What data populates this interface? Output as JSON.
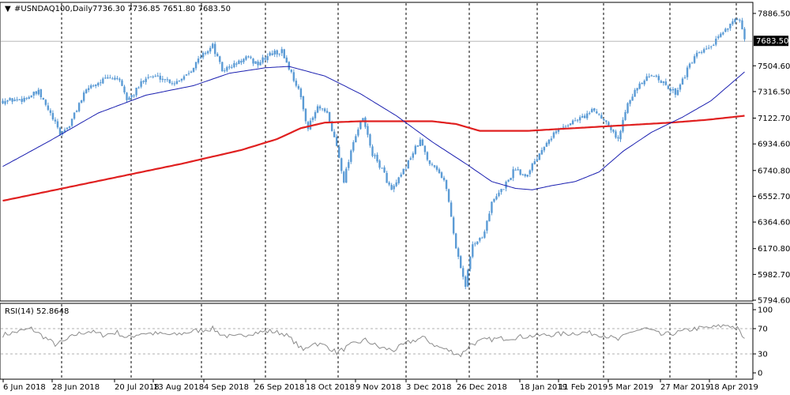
{
  "header": {
    "symbol": "#USNDAQ100,Daily",
    "ohlc": "7736.30 7736.85 7651.80 7683.50"
  },
  "price_tag": "7683.50",
  "colors": {
    "bull": "#5b9bd5",
    "bear": "#5b9bd5",
    "ma_fast": "#1a1fb0",
    "ma_slow": "#e02020",
    "rsi": "#8c8c8c",
    "grid": "#000000",
    "level": "#b0b0b0"
  },
  "chart_data": [
    {
      "type": "candlestick",
      "title": "#USNDAQ100,Daily",
      "x_tick_labels": [
        "6 Jun 2018",
        "28 Jun 2018",
        "20 Jul 2018",
        "13 Aug 2018",
        "4 Sep 2018",
        "26 Sep 2018",
        "18 Oct 2018",
        "9 Nov 2018",
        "3 Dec 2018",
        "26 Dec 2018",
        "18 Jan 2019",
        "11 Feb 2019",
        "5 Mar 2019",
        "27 Mar 2019",
        "18 Apr 2019"
      ],
      "y_ticks": [
        "7886.50",
        "7504.60",
        "7316.50",
        "7122.70",
        "6934.60",
        "6740.80",
        "6552.70",
        "6364.60",
        "6170.80",
        "5982.70",
        "5794.60"
      ],
      "ylim": [
        5794.6,
        7886.5
      ],
      "last_price": 7683.5,
      "keypoints": [
        [
          0,
          7250
        ],
        [
          8,
          7260
        ],
        [
          15,
          7310
        ],
        [
          20,
          7150
        ],
        [
          24,
          7010
        ],
        [
          28,
          7070
        ],
        [
          32,
          7230
        ],
        [
          36,
          7350
        ],
        [
          42,
          7400
        ],
        [
          48,
          7420
        ],
        [
          52,
          7260
        ],
        [
          55,
          7300
        ],
        [
          60,
          7430
        ],
        [
          66,
          7420
        ],
        [
          72,
          7380
        ],
        [
          78,
          7460
        ],
        [
          84,
          7590
        ],
        [
          88,
          7650
        ],
        [
          92,
          7470
        ],
        [
          97,
          7510
        ],
        [
          102,
          7560
        ],
        [
          107,
          7520
        ],
        [
          112,
          7590
        ],
        [
          117,
          7610
        ],
        [
          120,
          7490
        ],
        [
          124,
          7330
        ],
        [
          128,
          7050
        ],
        [
          132,
          7200
        ],
        [
          136,
          7150
        ],
        [
          140,
          6920
        ],
        [
          143,
          6670
        ],
        [
          147,
          6960
        ],
        [
          151,
          7120
        ],
        [
          155,
          6860
        ],
        [
          159,
          6750
        ],
        [
          163,
          6590
        ],
        [
          167,
          6700
        ],
        [
          171,
          6840
        ],
        [
          175,
          6960
        ],
        [
          178,
          6820
        ],
        [
          182,
          6760
        ],
        [
          186,
          6620
        ],
        [
          190,
          6180
        ],
        [
          194,
          5900
        ],
        [
          197,
          6210
        ],
        [
          201,
          6250
        ],
        [
          205,
          6500
        ],
        [
          210,
          6620
        ],
        [
          215,
          6760
        ],
        [
          219,
          6700
        ],
        [
          224,
          6840
        ],
        [
          228,
          6960
        ],
        [
          233,
          7040
        ],
        [
          238,
          7090
        ],
        [
          243,
          7130
        ],
        [
          248,
          7180
        ],
        [
          254,
          7080
        ],
        [
          258,
          6960
        ],
        [
          262,
          7250
        ],
        [
          266,
          7340
        ],
        [
          270,
          7410
        ],
        [
          274,
          7440
        ],
        [
          278,
          7350
        ],
        [
          282,
          7310
        ],
        [
          286,
          7440
        ],
        [
          290,
          7570
        ],
        [
          294,
          7610
        ],
        [
          298,
          7660
        ],
        [
          302,
          7750
        ],
        [
          306,
          7840
        ],
        [
          309,
          7820
        ],
        [
          311,
          7683.5
        ]
      ],
      "series": [
        {
          "name": "",
          "role": "ma_fast",
          "keypoints": [
            [
              0,
              6770
            ],
            [
              20,
              6960
            ],
            [
              40,
              7160
            ],
            [
              60,
              7290
            ],
            [
              80,
              7360
            ],
            [
              95,
              7450
            ],
            [
              110,
              7490
            ],
            [
              120,
              7500
            ],
            [
              135,
              7430
            ],
            [
              150,
              7300
            ],
            [
              165,
              7140
            ],
            [
              180,
              6950
            ],
            [
              195,
              6780
            ],
            [
              205,
              6660
            ],
            [
              215,
              6610
            ],
            [
              222,
              6600
            ],
            [
              230,
              6630
            ],
            [
              240,
              6660
            ],
            [
              250,
              6730
            ],
            [
              260,
              6880
            ],
            [
              272,
              7020
            ],
            [
              285,
              7130
            ],
            [
              297,
              7250
            ],
            [
              311,
              7460
            ]
          ]
        },
        {
          "name": "",
          "role": "ma_slow",
          "keypoints": [
            [
              0,
              6520
            ],
            [
              25,
              6610
            ],
            [
              50,
              6700
            ],
            [
              75,
              6790
            ],
            [
              100,
              6890
            ],
            [
              115,
              6970
            ],
            [
              125,
              7050
            ],
            [
              135,
              7090
            ],
            [
              150,
              7100
            ],
            [
              165,
              7100
            ],
            [
              180,
              7100
            ],
            [
              190,
              7080
            ],
            [
              200,
              7030
            ],
            [
              220,
              7030
            ],
            [
              240,
              7050
            ],
            [
              260,
              7070
            ],
            [
              280,
              7090
            ],
            [
              295,
              7110
            ],
            [
              311,
              7140
            ]
          ]
        }
      ]
    },
    {
      "type": "line",
      "title": "RSI(14) 52.8648",
      "ylim": [
        0,
        100
      ],
      "y_ticks": [
        "100",
        "70",
        "30",
        "0"
      ],
      "levels": [
        70,
        30
      ],
      "keypoints": [
        [
          0,
          60
        ],
        [
          6,
          65
        ],
        [
          12,
          70
        ],
        [
          18,
          55
        ],
        [
          22,
          45
        ],
        [
          26,
          50
        ],
        [
          30,
          60
        ],
        [
          36,
          66
        ],
        [
          42,
          60
        ],
        [
          48,
          64
        ],
        [
          52,
          55
        ],
        [
          58,
          63
        ],
        [
          64,
          62
        ],
        [
          72,
          60
        ],
        [
          80,
          66
        ],
        [
          88,
          70
        ],
        [
          92,
          60
        ],
        [
          97,
          56
        ],
        [
          104,
          63
        ],
        [
          112,
          66
        ],
        [
          118,
          62
        ],
        [
          122,
          50
        ],
        [
          126,
          35
        ],
        [
          130,
          48
        ],
        [
          136,
          42
        ],
        [
          140,
          32
        ],
        [
          146,
          44
        ],
        [
          152,
          52
        ],
        [
          158,
          40
        ],
        [
          164,
          36
        ],
        [
          170,
          48
        ],
        [
          176,
          56
        ],
        [
          182,
          42
        ],
        [
          188,
          34
        ],
        [
          192,
          28
        ],
        [
          196,
          45
        ],
        [
          202,
          52
        ],
        [
          208,
          54
        ],
        [
          214,
          56
        ],
        [
          220,
          58
        ],
        [
          228,
          60
        ],
        [
          236,
          62
        ],
        [
          244,
          64
        ],
        [
          252,
          60
        ],
        [
          258,
          52
        ],
        [
          264,
          66
        ],
        [
          270,
          70
        ],
        [
          276,
          60
        ],
        [
          282,
          63
        ],
        [
          290,
          70
        ],
        [
          298,
          72
        ],
        [
          304,
          76
        ],
        [
          308,
          70
        ],
        [
          311,
          53
        ]
      ]
    }
  ]
}
